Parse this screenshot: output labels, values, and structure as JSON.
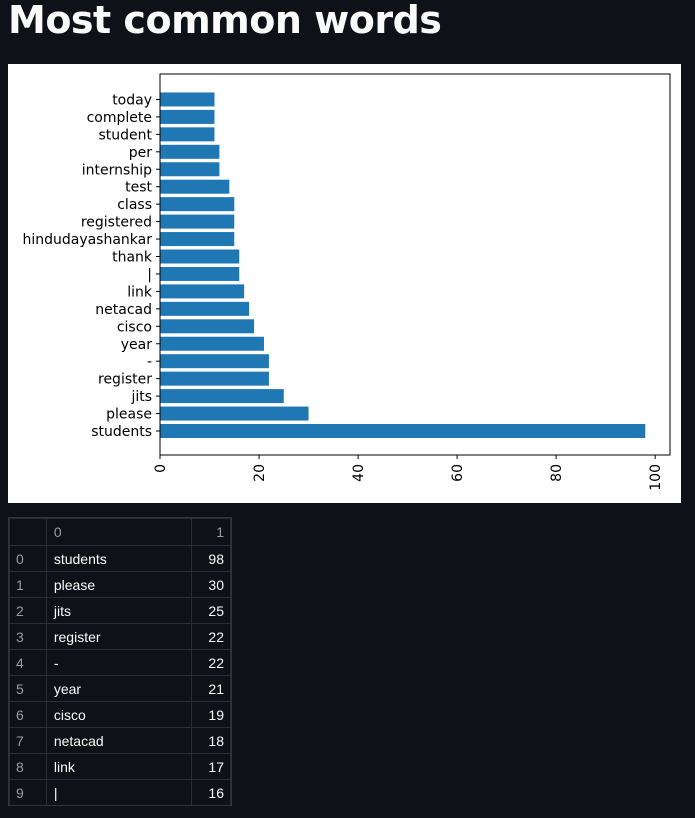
{
  "page": {
    "title": "Most common words"
  },
  "chart_data": {
    "type": "bar",
    "orientation": "horizontal",
    "title": "",
    "xlabel": "",
    "ylabel": "",
    "xlim": [
      0,
      103
    ],
    "xticks": [
      0,
      20,
      40,
      60,
      80,
      100
    ],
    "categories": [
      "students",
      "please",
      "jits",
      "register",
      "-",
      "year",
      "cisco",
      "netacad",
      "link",
      "|",
      "thank",
      "hindudayashankar",
      "registered",
      "class",
      "test",
      "internship",
      "per",
      "student",
      "complete",
      "today"
    ],
    "values": [
      98,
      30,
      25,
      22,
      22,
      21,
      19,
      18,
      17,
      16,
      16,
      15,
      15,
      15,
      14,
      12,
      12,
      11,
      11,
      11
    ],
    "bar_color": "#1f77b4",
    "grid": false
  },
  "table": {
    "columns": [
      "0",
      "1"
    ],
    "rows": [
      {
        "index": "0",
        "word": "students",
        "count": "98"
      },
      {
        "index": "1",
        "word": "please",
        "count": "30"
      },
      {
        "index": "2",
        "word": "jits",
        "count": "25"
      },
      {
        "index": "3",
        "word": "register",
        "count": "22"
      },
      {
        "index": "4",
        "word": "-",
        "count": "22"
      },
      {
        "index": "5",
        "word": "year",
        "count": "21"
      },
      {
        "index": "6",
        "word": "cisco",
        "count": "19"
      },
      {
        "index": "7",
        "word": "netacad",
        "count": "18"
      },
      {
        "index": "8",
        "word": "link",
        "count": "17"
      },
      {
        "index": "9",
        "word": "|",
        "count": "16"
      }
    ]
  }
}
